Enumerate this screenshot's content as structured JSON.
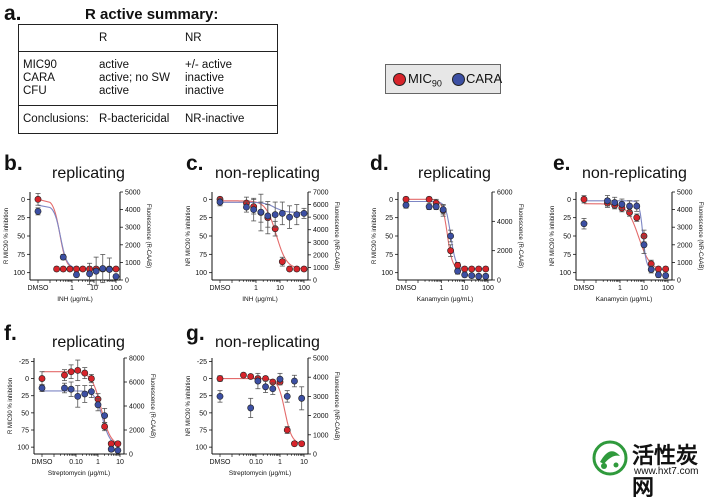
{
  "panel_a": {
    "label": "a.",
    "title": "R active summary:",
    "col_headers": [
      "R",
      "NR"
    ],
    "rows": [
      {
        "metric": "MIC90",
        "r": "active",
        "nr": "+/- active"
      },
      {
        "metric": "CARA",
        "r": "active; no SW",
        "nr": "inactive"
      },
      {
        "metric": "CFU",
        "r": "active",
        "nr": "inactive"
      }
    ],
    "conclusion": {
      "label": "Conclusions:",
      "r": "R-bactericidal",
      "nr": "NR-inactive"
    }
  },
  "legend": {
    "items": [
      {
        "name": "MIC",
        "sub": "90",
        "color": "#d7242b"
      },
      {
        "name": "CARA",
        "sub": "",
        "color": "#3c4fa3"
      }
    ]
  },
  "colors": {
    "mic90": "#d7242b",
    "cara": "#3c4fa3",
    "fit_mic90": "#e46b6b",
    "fit_cara": "#7d86c4"
  },
  "watermark": {
    "text": "活性炭网",
    "url": "www.hxt7.com"
  },
  "chart_data": [
    {
      "id": "b",
      "label": "b.",
      "title": "replicating",
      "type": "scatter",
      "xlabel": "INH (μg/mL)",
      "ylabel": "R MIC90 % inhibition",
      "y2label": "Fluorescence (R-CAAB)",
      "xlim": [
        0.1,
        100
      ],
      "xticks": [
        1,
        10,
        100
      ],
      "xticklabels": [
        "1",
        "10",
        "100"
      ],
      "dmso_label": "DMSO",
      "ylim": [
        110,
        -10
      ],
      "yticks": [
        0,
        25,
        50,
        75,
        100
      ],
      "yticklabels": [
        "0",
        "25",
        "50",
        "75",
        "100"
      ],
      "y2lim": [
        0,
        5000
      ],
      "y2ticks": [
        0,
        1000,
        2000,
        3000,
        4000,
        5000
      ],
      "y2ticklabels": [
        "0",
        "1000",
        "2000",
        "3000",
        "4000",
        "5000"
      ],
      "series": [
        {
          "name": "MIC90",
          "dmso": 0,
          "x": [
            0.2,
            0.4,
            0.8,
            1.6,
            3.1,
            6.3,
            12.5,
            25,
            50,
            100
          ],
          "y": [
            95,
            95,
            95,
            95,
            95,
            95,
            95,
            95,
            95,
            95
          ],
          "err": [
            3,
            3,
            3,
            3,
            3,
            3,
            3,
            3,
            3,
            3
          ],
          "dmso_err": 8
        },
        {
          "name": "CARA",
          "axis": "y2",
          "dmso": 3900,
          "x": [
            0.4,
            1.6,
            6.3,
            12.5,
            25,
            50,
            100
          ],
          "y": [
            1300,
            300,
            350,
            500,
            650,
            600,
            200
          ],
          "err": [
            150,
            120,
            600,
            800,
            800,
            650,
            120
          ],
          "dmso_err": 200
        }
      ],
      "fits": [
        {
          "name": "MIC90",
          "ic50": 0.28,
          "hill": 3,
          "bottom": 95,
          "top": 0
        },
        {
          "name": "CARA",
          "ic50": 0.3,
          "hill": 3,
          "bottom": 94,
          "top": 8
        }
      ]
    },
    {
      "id": "c",
      "label": "c.",
      "title": "non-replicating",
      "type": "scatter",
      "xlabel": "INH (μg/mL)",
      "ylabel": "NR MIC90 % inhibition",
      "y2label": "Fluorescence (NR-CAAB)",
      "xlim": [
        0.1,
        100
      ],
      "xticks": [
        1,
        10,
        100
      ],
      "xticklabels": [
        "1",
        "10",
        "100"
      ],
      "dmso_label": "DMSO",
      "ylim": [
        110,
        -10
      ],
      "yticks": [
        0,
        25,
        50,
        75,
        100
      ],
      "yticklabels": [
        "0",
        "25",
        "50",
        "75",
        "100"
      ],
      "y2lim": [
        0,
        7000
      ],
      "y2ticks": [
        0,
        1000,
        2000,
        3000,
        4000,
        5000,
        6000,
        7000
      ],
      "y2ticklabels": [
        "0",
        "1000",
        "2000",
        "3000",
        "4000",
        "5000",
        "6000",
        "7000"
      ],
      "series": [
        {
          "name": "MIC90",
          "dmso": 0,
          "x": [
            0.4,
            0.8,
            1.6,
            3.1,
            6.3,
            12.5,
            25,
            50,
            100
          ],
          "y": [
            5,
            10,
            18,
            25,
            40,
            85,
            95,
            95,
            95
          ],
          "err": [
            8,
            10,
            25,
            22,
            10,
            6,
            3,
            3,
            3
          ],
          "dmso_err": 3
        },
        {
          "name": "CARA",
          "axis": "y2",
          "dmso": 6200,
          "x": [
            0.4,
            0.8,
            1.6,
            3.1,
            6.3,
            12.5,
            25,
            50,
            100
          ],
          "y": [
            5800,
            5600,
            5400,
            5100,
            5200,
            5300,
            5000,
            5200,
            5300
          ],
          "err": [
            400,
            900,
            800,
            900,
            1000,
            900,
            900,
            800,
            400
          ],
          "dmso_err": 300
        }
      ],
      "fits": [
        {
          "name": "MIC90",
          "ic50": 7,
          "hill": 2,
          "bottom": 95,
          "top": 2
        },
        {
          "name": "CARA",
          "ic50": 6,
          "hill": 2,
          "bottom": 18,
          "top": 4
        }
      ]
    },
    {
      "id": "d",
      "label": "d.",
      "title": "replicating",
      "type": "scatter",
      "xlabel": "Kanamycin (μg/mL)",
      "ylabel": "R MIC90 % inhibition",
      "y2label": "Fluorescence (R-CAAB)",
      "xlim": [
        0.1,
        100
      ],
      "xticks": [
        1,
        10,
        100
      ],
      "xticklabels": [
        "1",
        "10",
        "100"
      ],
      "dmso_label": "DMSO",
      "ylim": [
        110,
        -10
      ],
      "yticks": [
        0,
        25,
        50,
        75,
        100
      ],
      "yticklabels": [
        "0",
        "25",
        "50",
        "75",
        "100"
      ],
      "y2lim": [
        0,
        6000
      ],
      "y2ticks": [
        0,
        2000,
        4000,
        6000
      ],
      "y2ticklabels": [
        "0",
        "2000",
        "4000",
        "6000"
      ],
      "series": [
        {
          "name": "MIC90",
          "dmso": 0,
          "x": [
            0.3,
            0.6,
            1.2,
            2.5,
            5,
            10,
            20,
            40,
            80
          ],
          "y": [
            0,
            5,
            15,
            70,
            90,
            95,
            95,
            95,
            95
          ],
          "err": [
            3,
            5,
            8,
            8,
            4,
            3,
            3,
            3,
            3
          ],
          "dmso_err": 3
        },
        {
          "name": "CARA",
          "axis": "y2",
          "dmso": 5100,
          "x": [
            0.3,
            0.6,
            1.2,
            2.5,
            5,
            10,
            20,
            40,
            80
          ],
          "y": [
            5000,
            5000,
            4800,
            3000,
            600,
            350,
            300,
            250,
            250
          ],
          "err": [
            200,
            200,
            300,
            400,
            200,
            150,
            150,
            150,
            150
          ],
          "dmso_err": 200
        }
      ],
      "fits": [
        {
          "name": "MIC90",
          "ic50": 1.8,
          "hill": 4,
          "bottom": 95,
          "top": 0
        },
        {
          "name": "CARA",
          "ic50": 2.5,
          "hill": 4,
          "bottom": 94,
          "top": 3
        }
      ]
    },
    {
      "id": "e",
      "label": "e.",
      "title": "non-replicating",
      "type": "scatter",
      "xlabel": "Kanamycin (μg/mL)",
      "ylabel": "NR MIC90 % inhibition",
      "y2label": "Fluorescence (NR-CAAB)",
      "xlim": [
        0.1,
        100
      ],
      "xticks": [
        1,
        10,
        100
      ],
      "xticklabels": [
        "1",
        "10",
        "100"
      ],
      "dmso_label": "DMSO",
      "ylim": [
        110,
        -10
      ],
      "yticks": [
        0,
        25,
        50,
        75,
        100
      ],
      "yticklabels": [
        "0",
        "25",
        "50",
        "75",
        "100"
      ],
      "y2lim": [
        0,
        5000
      ],
      "y2ticks": [
        0,
        1000,
        2000,
        3000,
        4000,
        5000
      ],
      "y2ticklabels": [
        "0",
        "1000",
        "2000",
        "3000",
        "4000",
        "5000"
      ],
      "series": [
        {
          "name": "MIC90",
          "dmso": 0,
          "x": [
            0.3,
            0.6,
            1.2,
            2.5,
            5,
            10,
            20,
            40,
            80
          ],
          "y": [
            5,
            8,
            12,
            18,
            25,
            50,
            88,
            95,
            95
          ],
          "err": [
            6,
            5,
            5,
            5,
            5,
            8,
            5,
            3,
            3
          ],
          "dmso_err": 5
        },
        {
          "name": "CARA",
          "axis": "y2",
          "dmso": 3200,
          "x": [
            0.3,
            0.6,
            1.2,
            2.5,
            5,
            10,
            20,
            40,
            80
          ],
          "y": [
            4500,
            4400,
            4300,
            4200,
            4200,
            2000,
            600,
            300,
            250
          ],
          "err": [
            300,
            300,
            300,
            300,
            300,
            500,
            200,
            150,
            150
          ],
          "dmso_err": 300
        }
      ],
      "fits": [
        {
          "name": "MIC90",
          "ic50": 6,
          "hill": 1.8,
          "bottom": 97,
          "top": 6
        },
        {
          "name": "CARA",
          "ic50": 9,
          "hill": 6,
          "bottom": 95,
          "top": 2
        }
      ]
    },
    {
      "id": "f",
      "label": "f.",
      "title": "replicating",
      "type": "scatter",
      "xlabel": "Streptomycin (μg/mL)",
      "ylabel": "R MIC90 % inhibition",
      "y2label": "Fluorescence (R-CAAB)",
      "xlim": [
        0.01,
        10
      ],
      "xticks": [
        0.1,
        1,
        10
      ],
      "xticklabels": [
        "0.10",
        "1",
        "10"
      ],
      "dmso_label": "DMSO",
      "ylim": [
        110,
        -30
      ],
      "yticks": [
        -25,
        0,
        25,
        50,
        75,
        100
      ],
      "yticklabels": [
        "-25",
        "0",
        "25",
        "50",
        "75",
        "100"
      ],
      "y2lim": [
        0,
        8000
      ],
      "y2ticks": [
        0,
        2000,
        4000,
        6000,
        8000
      ],
      "y2ticklabels": [
        "0",
        "2000",
        "4000",
        "6000",
        "8000"
      ],
      "series": [
        {
          "name": "MIC90",
          "dmso": 0,
          "x": [
            0.03,
            0.06,
            0.12,
            0.25,
            0.5,
            1,
            2,
            4,
            8
          ],
          "y": [
            -5,
            -10,
            -12,
            -8,
            0,
            30,
            70,
            95,
            95
          ],
          "err": [
            8,
            10,
            15,
            8,
            6,
            8,
            6,
            3,
            3
          ],
          "dmso_err": 10
        },
        {
          "name": "CARA",
          "axis": "y2",
          "dmso": 5500,
          "x": [
            0.03,
            0.06,
            0.12,
            0.25,
            0.5,
            1,
            2,
            4,
            8
          ],
          "y": [
            5500,
            5400,
            4800,
            5000,
            5200,
            4100,
            3200,
            400,
            300
          ],
          "err": [
            400,
            600,
            900,
            700,
            500,
            500,
            600,
            200,
            150
          ],
          "dmso_err": 300
        }
      ],
      "fits": [
        {
          "name": "MIC90",
          "ic50": 1.4,
          "hill": 2,
          "bottom": 98,
          "top": -10
        },
        {
          "name": "CARA",
          "ic50": 1.6,
          "hill": 2.5,
          "bottom": 97,
          "top": 18
        }
      ]
    },
    {
      "id": "g",
      "label": "g.",
      "title": "non-replicating",
      "type": "scatter",
      "xlabel": "Streptomycin (μg/mL)",
      "ylabel": "NR MIC90 % inhibition",
      "y2label": "Fluorescence (NR-CAAB)",
      "xlim": [
        0.01,
        10
      ],
      "xticks": [
        0.1,
        1,
        10
      ],
      "xticklabels": [
        "0.10",
        "1",
        "10"
      ],
      "dmso_label": "DMSO",
      "ylim": [
        110,
        -30
      ],
      "yticks": [
        -25,
        0,
        25,
        50,
        75,
        100
      ],
      "yticklabels": [
        "-25",
        "0",
        "25",
        "50",
        "75",
        "100"
      ],
      "y2lim": [
        0,
        5000
      ],
      "y2ticks": [
        0,
        1000,
        2000,
        3000,
        4000,
        5000
      ],
      "y2ticklabels": [
        "0",
        "1000",
        "2000",
        "3000",
        "4000",
        "5000"
      ],
      "series": [
        {
          "name": "MIC90",
          "dmso": 0,
          "x": [
            0.03,
            0.06,
            0.12,
            0.25,
            0.5,
            1,
            2,
            4,
            8
          ],
          "y": [
            -5,
            -3,
            0,
            0,
            5,
            5,
            75,
            95,
            95
          ],
          "err": [
            3,
            3,
            3,
            3,
            3,
            3,
            5,
            3,
            3
          ],
          "dmso_err": 4
        },
        {
          "name": "CARA",
          "axis": "y2",
          "dmso": 3000,
          "x": [
            0.06,
            0.12,
            0.25,
            0.5,
            1,
            2,
            4,
            8
          ],
          "y": [
            2400,
            3800,
            3500,
            3400,
            3900,
            3000,
            3800,
            2900
          ],
          "err": [
            500,
            400,
            300,
            300,
            300,
            300,
            300,
            600
          ],
          "dmso_err": 300
        }
      ],
      "fits": [
        {
          "name": "MIC90",
          "ic50": 1.6,
          "hill": 3,
          "bottom": 95,
          "top": 0
        }
      ]
    }
  ]
}
